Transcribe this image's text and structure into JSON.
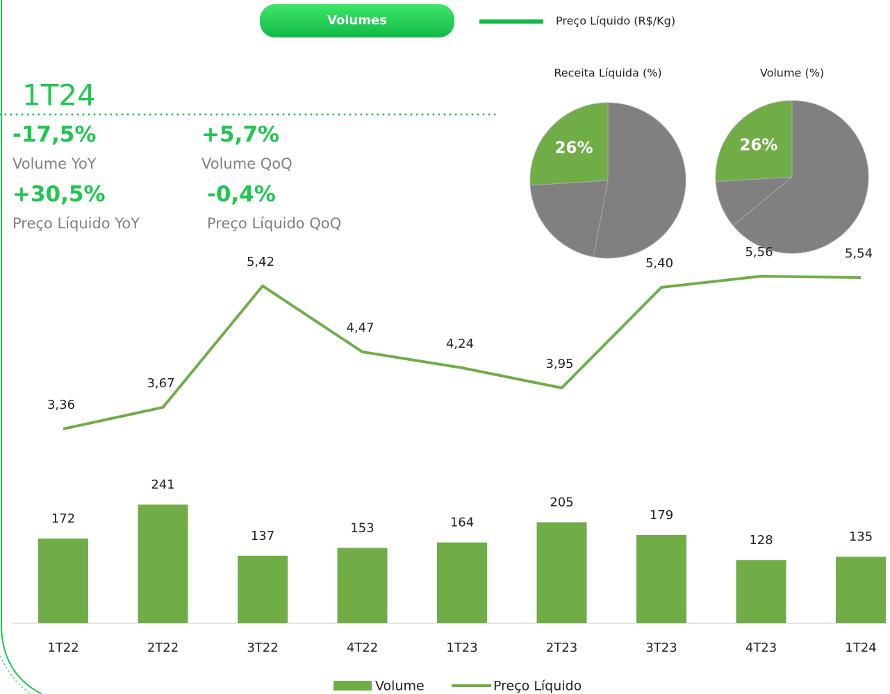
{
  "header": {
    "button": "Volumes",
    "legend": "Preço Líquido (R$/Kg)"
  },
  "kpis": {
    "period": "1T24",
    "items": [
      {
        "value": "-17,5%",
        "label": "Volume YoY"
      },
      {
        "value": "+5,7%",
        "label": "Volume QoQ"
      },
      {
        "value": "+30,5%",
        "label": "Preço Líquido YoY"
      },
      {
        "value": "-0,4%",
        "label": "Preço Líquido QoQ"
      }
    ]
  },
  "chart_data": [
    {
      "type": "pie",
      "title": "Receita Líquida (%)",
      "values": [
        53,
        21,
        26
      ],
      "value_labels": [
        null,
        null,
        "26%"
      ],
      "colors": [
        "#808080",
        "#808080",
        "#70ad47"
      ]
    },
    {
      "type": "pie",
      "title": "Volume (%)",
      "values": [
        64,
        10,
        26
      ],
      "value_labels": [
        null,
        null,
        "26%"
      ],
      "colors": [
        "#808080",
        "#808080",
        "#70ad47"
      ]
    },
    {
      "type": "combo",
      "categories": [
        "1T22",
        "2T22",
        "3T22",
        "4T22",
        "1T23",
        "2T23",
        "3T23",
        "4T23",
        "1T24"
      ],
      "ylim": [
        0,
        730
      ],
      "y2lim": [
        0.56,
        5.74
      ],
      "series": [
        {
          "name": "Volume",
          "type": "bar",
          "color": "#70ad47",
          "values": [
            172,
            241,
            137,
            153,
            164,
            205,
            179,
            128,
            135
          ]
        },
        {
          "name": "Preço Líquido",
          "type": "line",
          "axis": "y2",
          "color": "#70ad47",
          "values": [
            3.36,
            3.67,
            5.42,
            4.47,
            4.24,
            3.95,
            5.4,
            5.56,
            5.54
          ],
          "value_labels": [
            "3,36",
            "3,67",
            "5,42",
            "4,47",
            "4,24",
            "3,95",
            "5,40",
            "5,56",
            "5,54"
          ]
        }
      ]
    }
  ]
}
